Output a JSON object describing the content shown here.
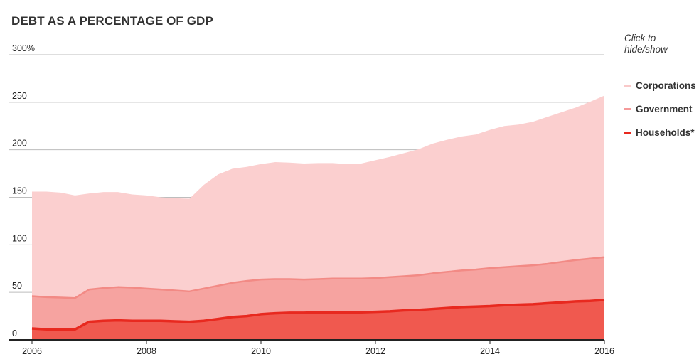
{
  "header": {
    "title": "DEBT AS A PERCENTAGE OF GDP"
  },
  "legend": {
    "hint": "Click to hide/show",
    "items": [
      {
        "label": "Corporations",
        "color": "#f9c9c9"
      },
      {
        "label": "Government",
        "color": "#f59a9a"
      },
      {
        "label": "Households*",
        "color": "#e8291f"
      }
    ]
  },
  "colors": {
    "corporations_fill": "#fbcfcf",
    "government_fill": "#f6a3a0",
    "households_fill": "#f0594f",
    "government_line": "#f28a85",
    "households_line": "#e8291f",
    "grid": "#bdbdbd",
    "axis": "#222222"
  },
  "chart_data": {
    "type": "area",
    "stacked": true,
    "title": "DEBT AS A PERCENTAGE OF GDP",
    "xlabel": "",
    "ylabel": "",
    "xlim": [
      2006,
      2016
    ],
    "ylim": [
      0,
      300
    ],
    "y_ticks": [
      {
        "value": 0,
        "label": "0"
      },
      {
        "value": 50,
        "label": "50"
      },
      {
        "value": 100,
        "label": "100"
      },
      {
        "value": 150,
        "label": "150"
      },
      {
        "value": 200,
        "label": "200"
      },
      {
        "value": 250,
        "label": "250"
      },
      {
        "value": 300,
        "label": "300%"
      }
    ],
    "x_ticks": [
      {
        "value": 2006,
        "label": "2006"
      },
      {
        "value": 2008,
        "label": "2008"
      },
      {
        "value": 2010,
        "label": "2010"
      },
      {
        "value": 2012,
        "label": "2012"
      },
      {
        "value": 2014,
        "label": "2014"
      },
      {
        "value": 2016,
        "label": "2016"
      }
    ],
    "grid": true,
    "legend_position": "right",
    "x": [
      2006,
      2006.25,
      2006.5,
      2006.75,
      2007,
      2007.25,
      2007.5,
      2007.75,
      2008,
      2008.25,
      2008.5,
      2008.75,
      2009,
      2009.25,
      2009.5,
      2009.75,
      2010,
      2010.25,
      2010.5,
      2010.75,
      2011,
      2011.25,
      2011.5,
      2011.75,
      2012,
      2012.25,
      2012.5,
      2012.75,
      2013,
      2013.25,
      2013.5,
      2013.75,
      2014,
      2014.25,
      2014.5,
      2014.75,
      2015,
      2015.25,
      2015.5,
      2015.75,
      2016
    ],
    "series": [
      {
        "name": "Households*",
        "cumulative": [
          12,
          11,
          11,
          11,
          19,
          20,
          20.5,
          20,
          20,
          20,
          19.5,
          19,
          20,
          22,
          24,
          25,
          27,
          28,
          28.5,
          28.5,
          29,
          29,
          29,
          29,
          29.5,
          30,
          31,
          31.5,
          32.5,
          33.5,
          34.5,
          35,
          35.5,
          36.5,
          37,
          37.5,
          38.5,
          39.5,
          40.5,
          41,
          42
        ]
      },
      {
        "name": "Government",
        "cumulative": [
          46,
          45,
          44.5,
          44,
          53,
          54.5,
          55.5,
          55,
          54,
          53,
          52,
          51,
          54,
          57,
          60,
          62,
          63.5,
          64,
          64,
          63.5,
          64,
          64.5,
          64.5,
          64.5,
          65,
          66,
          67,
          68,
          70,
          71.5,
          73,
          74,
          75.5,
          76.5,
          77.5,
          78.5,
          80,
          82,
          84,
          85.5,
          87
        ]
      },
      {
        "name": "Corporations",
        "cumulative": [
          156,
          156,
          155,
          152,
          154,
          155.5,
          155.5,
          153,
          152,
          150,
          149,
          148.5,
          163,
          174,
          180,
          182,
          185,
          187,
          186.5,
          185.5,
          186,
          186,
          185,
          185.5,
          189,
          192.5,
          196.5,
          200.5,
          206.5,
          210.5,
          214,
          216,
          221,
          225,
          226.5,
          229.5,
          234.5,
          239.5,
          244.5,
          250.5,
          257
        ]
      }
    ]
  }
}
